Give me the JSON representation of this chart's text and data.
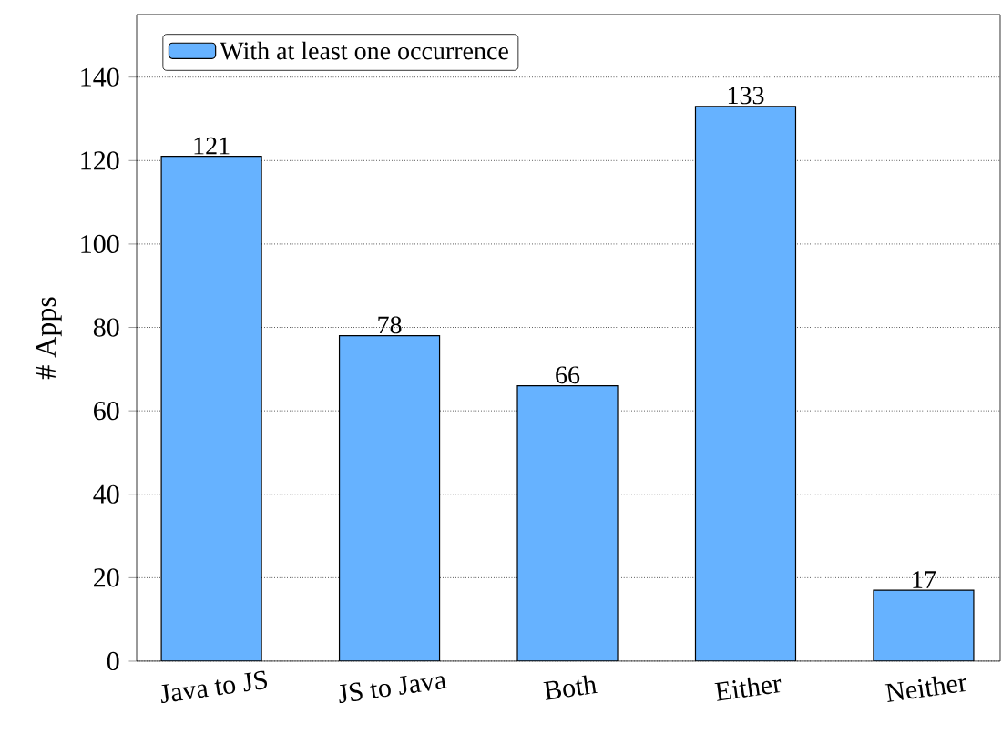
{
  "chart_data": {
    "type": "bar",
    "ylabel": "# Apps",
    "categories": [
      "Java to JS",
      "JS to Java",
      "Both",
      "Either",
      "Neither"
    ],
    "series": [
      {
        "name": "With at least one occurrence",
        "color": "#66b2ff",
        "values": [
          121,
          78,
          66,
          133,
          17
        ]
      }
    ],
    "ylim": [
      0,
      155
    ],
    "yticks": [
      0,
      20,
      40,
      60,
      80,
      100,
      120,
      140
    ],
    "grid": "y",
    "legend": "top left",
    "data_labels": true
  }
}
